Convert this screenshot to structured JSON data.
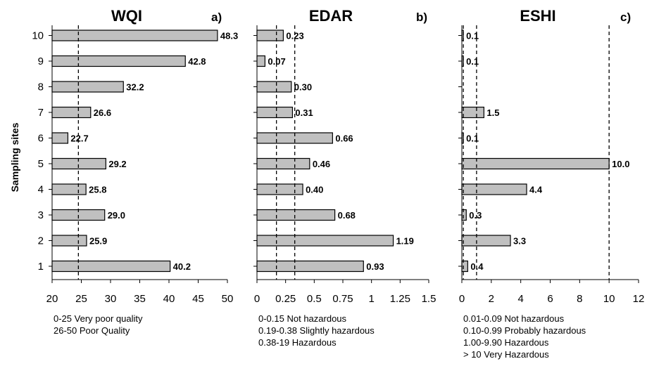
{
  "ylabel": "Sampling sites",
  "chart_data": [
    {
      "type": "bar",
      "orientation": "horizontal",
      "title": "WQI",
      "panel": "a)",
      "categories": [
        "1",
        "2",
        "3",
        "4",
        "5",
        "6",
        "7",
        "8",
        "9",
        "10"
      ],
      "values": [
        40.2,
        25.9,
        29.0,
        25.8,
        29.2,
        22.7,
        26.6,
        32.2,
        42.8,
        48.3
      ],
      "value_labels": [
        "40.2",
        "25.9",
        "29.0",
        "25.8",
        "29.2",
        "22.7",
        "26.6",
        "32.2",
        "42.8",
        "48.3"
      ],
      "xlim": [
        20,
        50
      ],
      "xticks": [
        20,
        25,
        30,
        35,
        40,
        45,
        50
      ],
      "xtick_labels": [
        "20",
        "25",
        "30",
        "35",
        "40",
        "45",
        "50"
      ],
      "reference_lines": [
        24.5
      ],
      "legend": [
        "0-25 Very poor quality",
        "26-50 Poor Quality"
      ]
    },
    {
      "type": "bar",
      "orientation": "horizontal",
      "title": "EDAR",
      "panel": "b)",
      "categories": [
        "1",
        "2",
        "3",
        "4",
        "5",
        "6",
        "7",
        "8",
        "9",
        "10"
      ],
      "values": [
        0.93,
        1.19,
        0.68,
        0.4,
        0.46,
        0.66,
        0.31,
        0.3,
        0.07,
        0.23
      ],
      "value_labels": [
        "0.93",
        "1.19",
        "0.68",
        "0.40",
        "0.46",
        "0.66",
        "0.31",
        "0.30",
        "0.07",
        "0.23"
      ],
      "xlim": [
        0,
        1.5
      ],
      "xticks": [
        0,
        0.25,
        0.5,
        0.75,
        1,
        1.25,
        1.5
      ],
      "xtick_labels": [
        "0",
        "0.25",
        "0.5",
        "0.75",
        "1",
        "1.25",
        "1.5"
      ],
      "reference_lines": [
        0.17,
        0.33
      ],
      "legend": [
        "0-0.15 Not hazardous",
        "0.19-0.38 Slightly hazardous",
        "0.38-19 Hazardous"
      ]
    },
    {
      "type": "bar",
      "orientation": "horizontal",
      "title": "ESHI",
      "panel": "c)",
      "categories": [
        "1",
        "2",
        "3",
        "4",
        "5",
        "6",
        "7",
        "8",
        "9",
        "10"
      ],
      "values": [
        0.4,
        3.3,
        0.3,
        4.4,
        10.0,
        0.1,
        1.5,
        0.0,
        0.1,
        0.1
      ],
      "value_labels": [
        "0.4",
        "3.3",
        "0.3",
        "4.4",
        "10.0",
        "0.1",
        "1.5",
        "",
        "0.1",
        "0.1"
      ],
      "xlim": [
        0,
        12
      ],
      "xticks": [
        0,
        2,
        4,
        6,
        8,
        10,
        12
      ],
      "xtick_labels": [
        "0",
        "2",
        "4",
        "6",
        "8",
        "10",
        "12"
      ],
      "reference_lines": [
        0.1,
        1.0,
        10.0
      ],
      "legend": [
        "0.01-0.09 Not hazardous",
        "0.10-0.99 Probably hazardous",
        "1.00-9.90 Hazardous",
        "> 10 Very Hazardous"
      ]
    }
  ]
}
